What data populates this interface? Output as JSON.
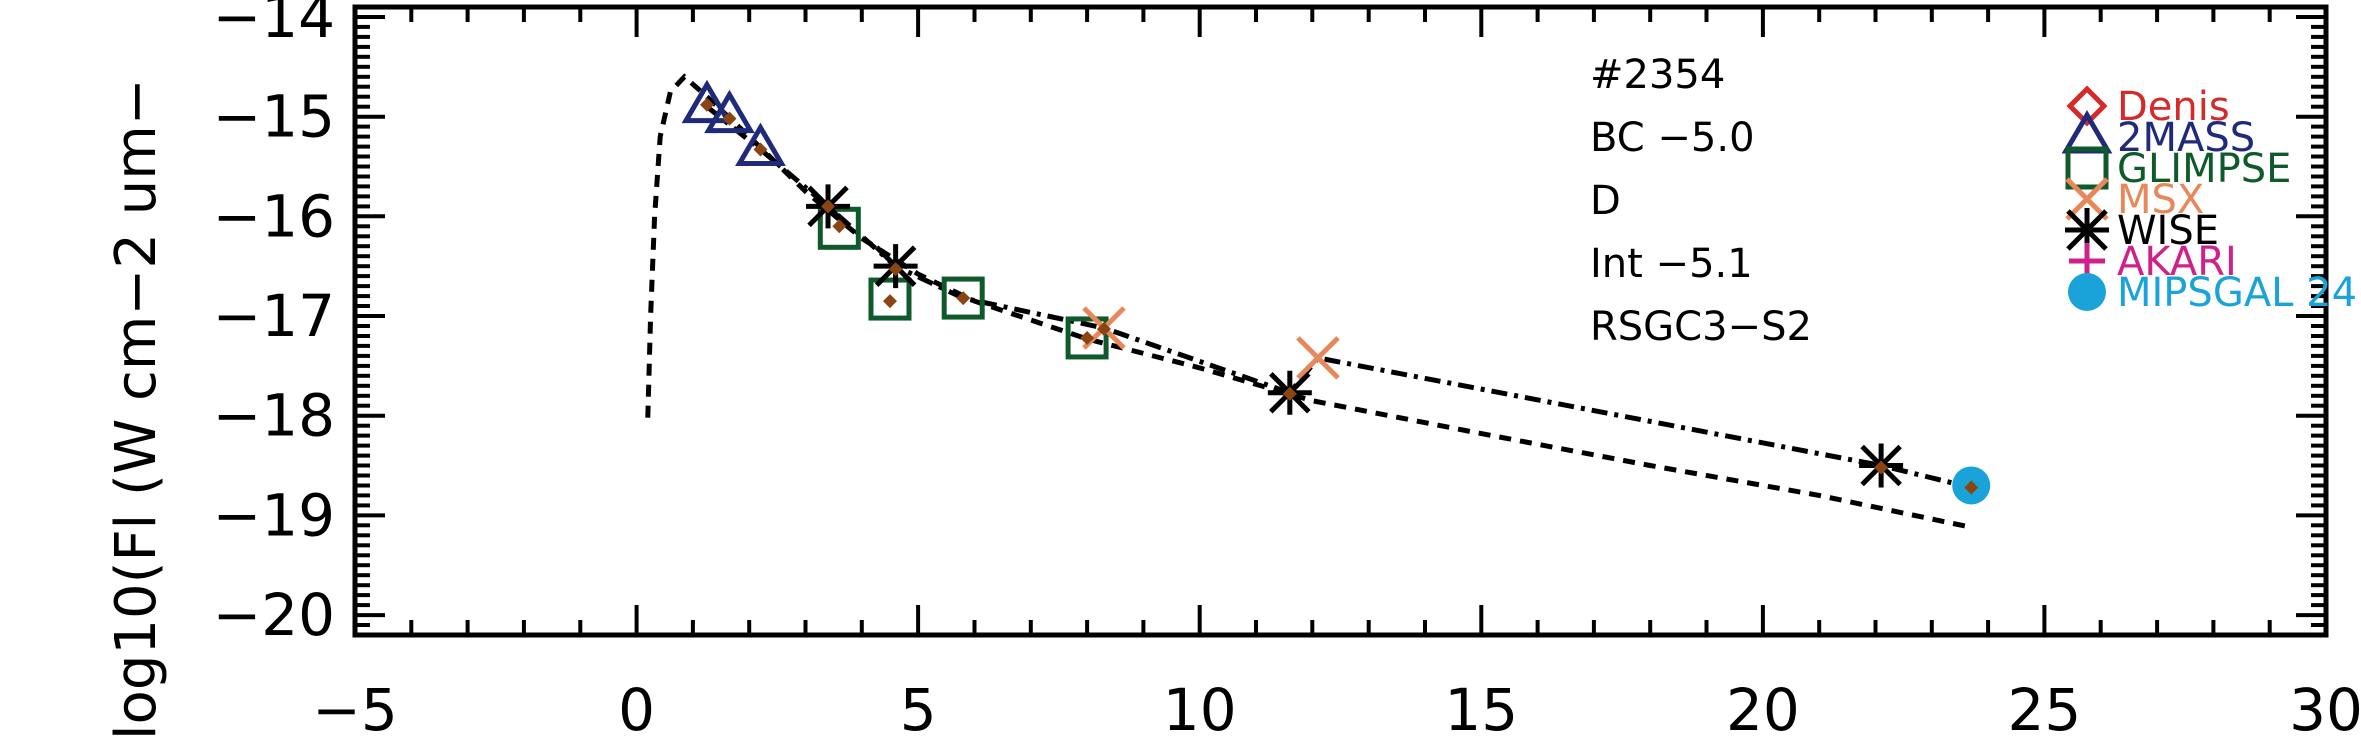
{
  "chart_data": {
    "type": "scatter",
    "title": "",
    "xlabel": "",
    "ylabel": "log10(Fl (W cm−2 um−",
    "xlim": [
      -5,
      30
    ],
    "ylim": [
      -20.2,
      -13.9
    ],
    "xticks": [
      -5,
      0,
      5,
      10,
      15,
      20,
      25,
      30
    ],
    "xtick_labels": [
      "−5",
      "0",
      "5",
      "10",
      "15",
      "20",
      "25",
      "30"
    ],
    "yticks": [
      -20,
      -19,
      -18,
      -17,
      -16,
      -15,
      -14
    ],
    "ytick_labels": [
      "−20",
      "−19",
      "−18",
      "−17",
      "−16",
      "−15",
      "−14"
    ],
    "annotations": [
      "#2354",
      "BC −5.0",
      "D",
      "Int −5.1",
      "RSGC3−S2"
    ],
    "legend": {
      "placement": "right",
      "entries": [
        {
          "label": "Denis",
          "marker": "diamond",
          "color": "#d42a2a"
        },
        {
          "label": "2MASS",
          "marker": "triangle",
          "color": "#1f2a7a"
        },
        {
          "label": "GLIMPSE",
          "marker": "square",
          "color": "#0f5a2a"
        },
        {
          "label": "MSX",
          "marker": "x",
          "color": "#e8875a"
        },
        {
          "label": "WISE",
          "marker": "asterisk",
          "color": "#000000"
        },
        {
          "label": "AKARI",
          "marker": "plus",
          "color": "#d0208a"
        },
        {
          "label": "MIPSGAL 24",
          "marker": "circle",
          "color": "#1aa3d9"
        }
      ]
    },
    "series": [
      {
        "source": "2MASS",
        "marker": "triangle",
        "color": "#1f2a7a",
        "points": [
          [
            1.25,
            -14.9
          ],
          [
            1.65,
            -15.0
          ],
          [
            2.2,
            -15.33
          ]
        ]
      },
      {
        "source": "GLIMPSE",
        "marker": "square",
        "color": "#0f5a2a",
        "points": [
          [
            3.6,
            -16.12
          ],
          [
            4.5,
            -16.83
          ],
          [
            5.8,
            -16.82
          ],
          [
            8.0,
            -17.22
          ]
        ]
      },
      {
        "source": "MSX",
        "marker": "x",
        "color": "#e8875a",
        "points": [
          [
            8.3,
            -17.12
          ],
          [
            12.1,
            -17.42
          ]
        ]
      },
      {
        "source": "WISE",
        "marker": "asterisk",
        "color": "#000000",
        "points": [
          [
            3.4,
            -15.9
          ],
          [
            4.6,
            -16.5
          ],
          [
            11.6,
            -17.77
          ],
          [
            22.1,
            -18.5
          ]
        ]
      },
      {
        "source": "MIPSGAL 24",
        "marker": "circle",
        "color": "#1aa3d9",
        "points": [
          [
            23.7,
            -18.7
          ]
        ]
      },
      {
        "source": "model fit",
        "marker": "small-diamond",
        "color": "#8b4513",
        "points": [
          [
            1.25,
            -14.88
          ],
          [
            1.65,
            -15.02
          ],
          [
            2.2,
            -15.33
          ],
          [
            3.4,
            -15.9
          ],
          [
            3.6,
            -16.1
          ],
          [
            4.5,
            -16.85
          ],
          [
            4.6,
            -16.53
          ],
          [
            5.8,
            -16.82
          ],
          [
            8.0,
            -17.22
          ],
          [
            8.3,
            -17.13
          ],
          [
            11.6,
            -17.78
          ],
          [
            22.1,
            -18.52
          ],
          [
            23.7,
            -18.72
          ]
        ]
      }
    ],
    "lines": [
      {
        "style": "dashed",
        "color": "#000000",
        "points": [
          [
            0.2,
            -18.02
          ],
          [
            0.25,
            -17.0
          ],
          [
            0.32,
            -16.0
          ],
          [
            0.42,
            -15.2
          ],
          [
            0.6,
            -14.75
          ],
          [
            0.85,
            -14.6
          ],
          [
            1.25,
            -14.8
          ],
          [
            2.0,
            -15.2
          ],
          [
            3.0,
            -15.75
          ],
          [
            4.0,
            -16.22
          ],
          [
            5.0,
            -16.58
          ],
          [
            6.0,
            -16.85
          ],
          [
            8.0,
            -17.23
          ],
          [
            10.0,
            -17.52
          ],
          [
            12.0,
            -17.85
          ],
          [
            15.0,
            -18.18
          ],
          [
            18.0,
            -18.5
          ],
          [
            21.0,
            -18.8
          ],
          [
            23.7,
            -19.12
          ]
        ]
      },
      {
        "style": "dashdot",
        "color": "#000000",
        "points": [
          [
            1.25,
            -14.9
          ],
          [
            2.2,
            -15.33
          ],
          [
            3.4,
            -15.9
          ],
          [
            4.6,
            -16.5
          ],
          [
            5.8,
            -16.82
          ],
          [
            8.3,
            -17.12
          ],
          [
            11.6,
            -17.77
          ],
          [
            12.1,
            -17.42
          ],
          [
            22.1,
            -18.5
          ],
          [
            23.7,
            -18.72
          ]
        ]
      }
    ]
  }
}
